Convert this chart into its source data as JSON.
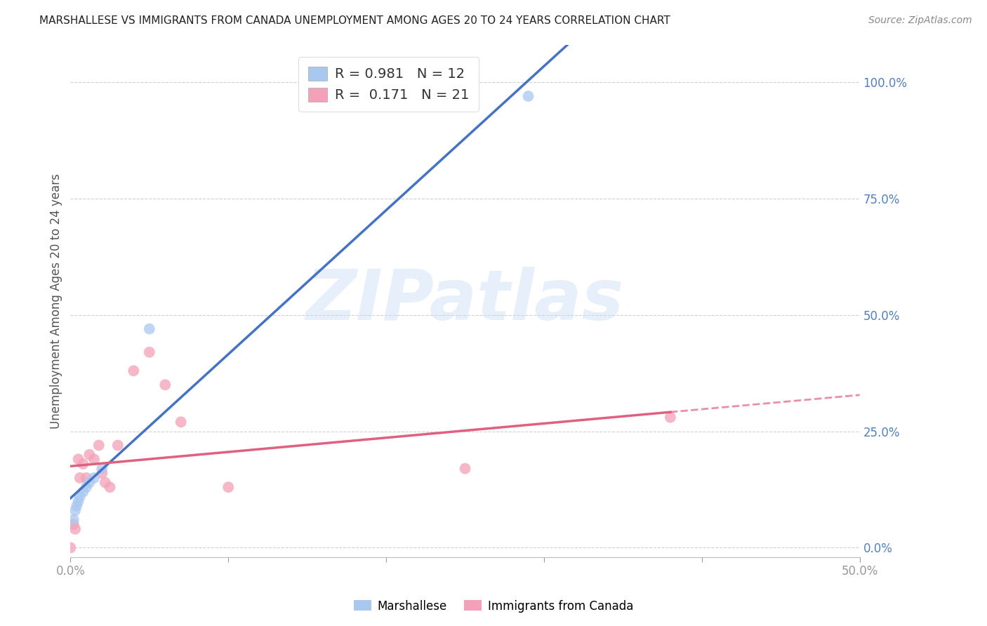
{
  "title": "MARSHALLESE VS IMMIGRANTS FROM CANADA UNEMPLOYMENT AMONG AGES 20 TO 24 YEARS CORRELATION CHART",
  "source": "Source: ZipAtlas.com",
  "ylabel": "Unemployment Among Ages 20 to 24 years",
  "xlim": [
    0.0,
    0.5
  ],
  "ylim": [
    -0.02,
    1.08
  ],
  "xticks": [
    0.0,
    0.1,
    0.2,
    0.3,
    0.4,
    0.5
  ],
  "xticklabels_show": [
    "0.0%",
    "",
    "",
    "",
    "",
    "50.0%"
  ],
  "yticks_right": [
    0.0,
    0.25,
    0.5,
    0.75,
    1.0
  ],
  "yticklabels_right": [
    "0.0%",
    "25.0%",
    "50.0%",
    "75.0%",
    "100.0%"
  ],
  "marshallese_x": [
    0.002,
    0.003,
    0.004,
    0.005,
    0.006,
    0.008,
    0.01,
    0.012,
    0.015,
    0.02,
    0.05,
    0.29
  ],
  "marshallese_y": [
    0.06,
    0.08,
    0.09,
    0.1,
    0.11,
    0.12,
    0.13,
    0.14,
    0.15,
    0.17,
    0.47,
    0.97
  ],
  "canada_x": [
    0.0,
    0.002,
    0.003,
    0.005,
    0.006,
    0.008,
    0.01,
    0.012,
    0.015,
    0.018,
    0.02,
    0.022,
    0.025,
    0.03,
    0.04,
    0.05,
    0.06,
    0.07,
    0.1,
    0.25,
    0.38
  ],
  "canada_y": [
    0.0,
    0.05,
    0.04,
    0.19,
    0.15,
    0.18,
    0.15,
    0.2,
    0.19,
    0.22,
    0.16,
    0.14,
    0.13,
    0.22,
    0.38,
    0.42,
    0.35,
    0.27,
    0.13,
    0.17,
    0.28
  ],
  "blue_color": "#a8c8f0",
  "pink_color": "#f4a0b8",
  "blue_line_color": "#4472c4",
  "pink_line_color": "#e06080",
  "pink_dash_color": "#e8a0b8",
  "R_marshallese": 0.981,
  "N_marshallese": 12,
  "R_canada": 0.171,
  "N_canada": 21,
  "watermark_text": "ZIPatlas",
  "bg_color": "#ffffff",
  "grid_color": "#d0d0d0",
  "title_color": "#222222",
  "source_color": "#888888",
  "ylabel_color": "#555555",
  "right_axis_color": "#5080c0",
  "legend_box_color": "#dddddd"
}
